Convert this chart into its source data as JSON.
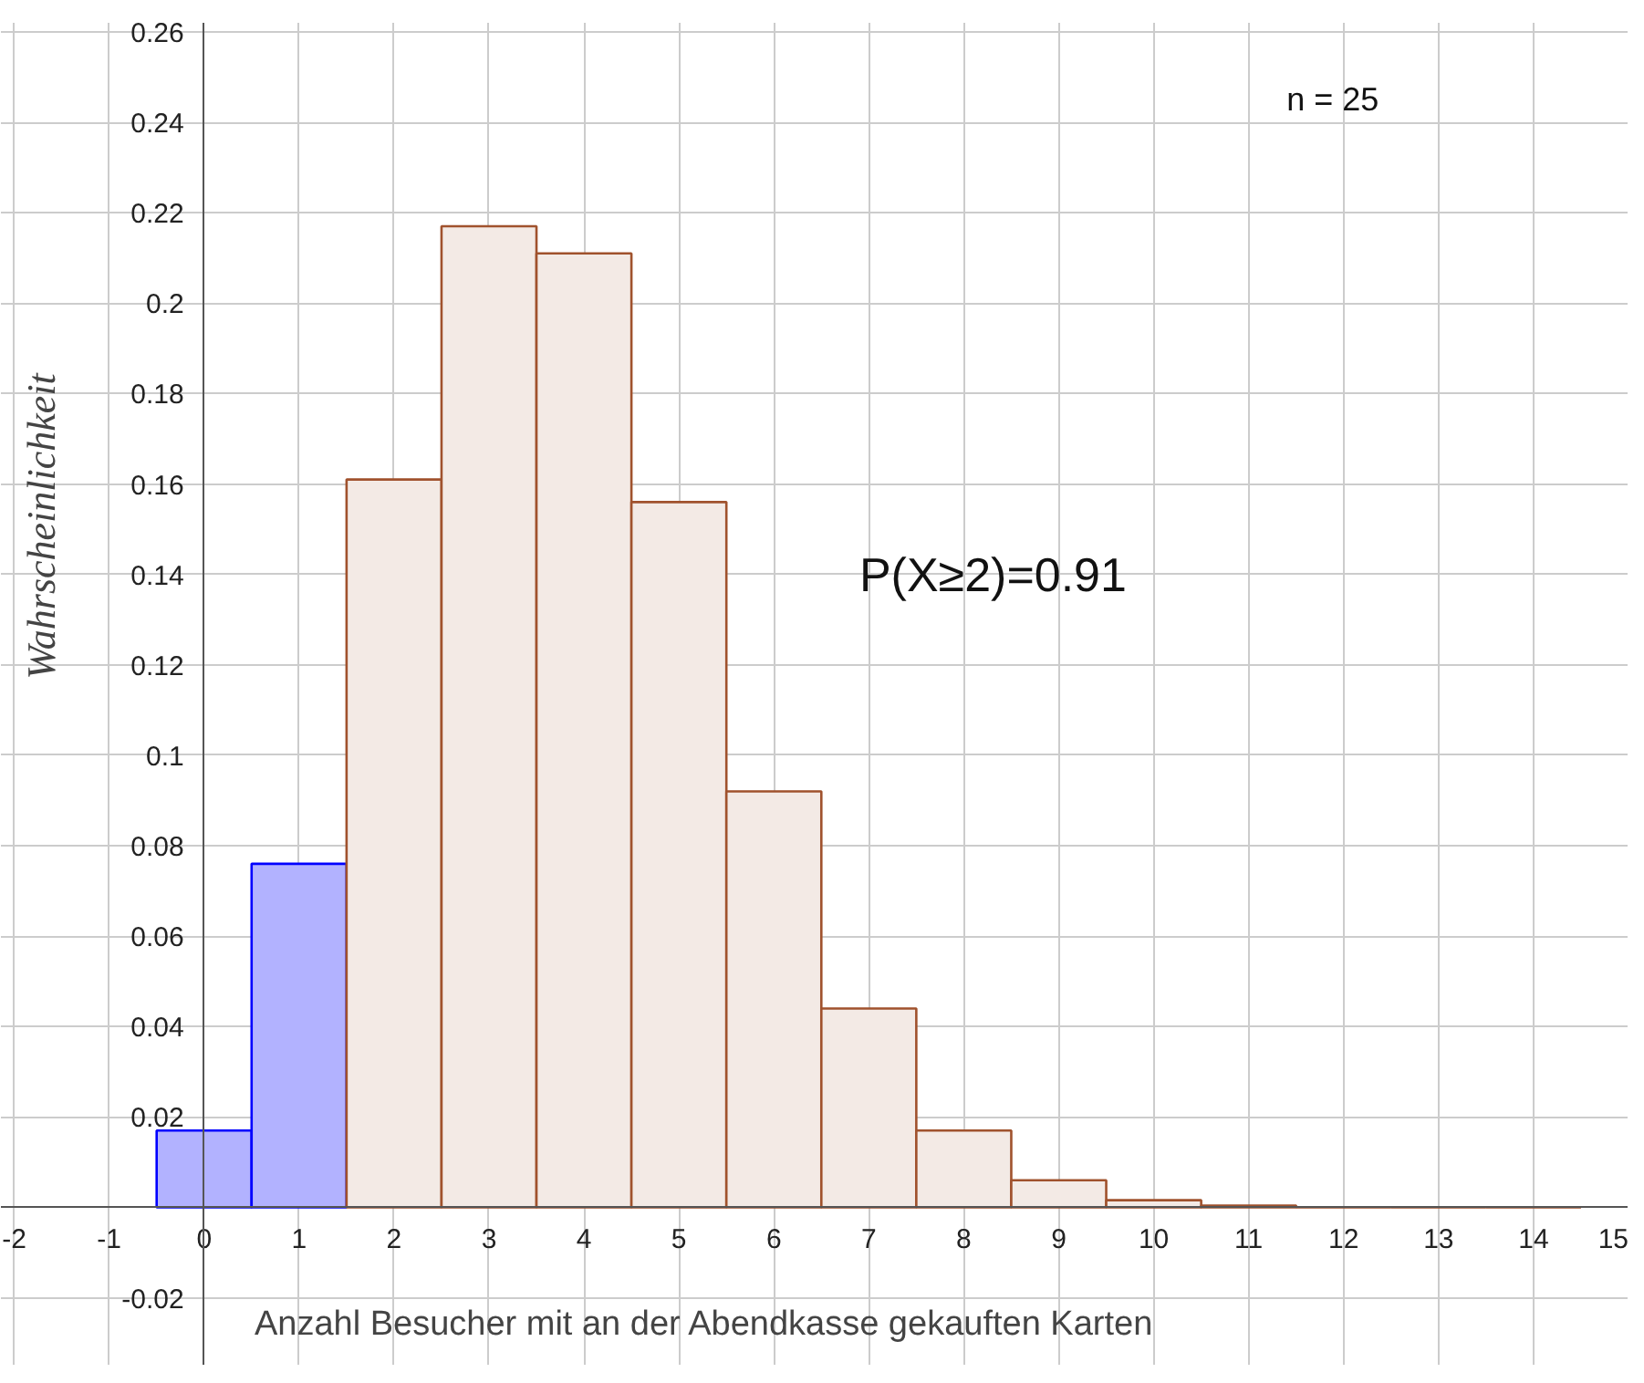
{
  "chart_data": {
    "type": "bar",
    "xlabel": "Anzahl Besucher mit an der Abendkasse gekauften Karten",
    "ylabel": "Wahrscheinlichkeit",
    "x": [
      0,
      1,
      2,
      3,
      4,
      5,
      6,
      7,
      8,
      9,
      10,
      11,
      12,
      13,
      14
    ],
    "values": [
      0.017,
      0.076,
      0.161,
      0.217,
      0.211,
      0.156,
      0.092,
      0.044,
      0.017,
      0.006,
      0.0016,
      0.0004,
      0,
      0,
      0
    ],
    "colors": [
      "#0000ff",
      "#0000ff",
      "#a0522d",
      "#a0522d",
      "#a0522d",
      "#a0522d",
      "#a0522d",
      "#a0522d",
      "#a0522d",
      "#a0522d",
      "#a0522d",
      "#a0522d",
      "#a0522d",
      "#a0522d",
      "#a0522d"
    ],
    "xlim": [
      -2.14,
      15.0
    ],
    "ylim": [
      -0.035,
      0.262
    ],
    "xticks": [
      {
        "value": -2,
        "label": "-2"
      },
      -1,
      0,
      1,
      2,
      3,
      4,
      5,
      6,
      7,
      8,
      9,
      10,
      11,
      12,
      13,
      14,
      15
    ],
    "yticks": [
      -0.02,
      {
        "value": 0,
        "label": null
      },
      0.02,
      0.04,
      0.06,
      0.08,
      0.1,
      0.12,
      0.14,
      0.16,
      0.18,
      0.2,
      0.22,
      0.24,
      0.26
    ],
    "grid": true,
    "annotations": [
      "P(X≥2)=0.91",
      "n = 25"
    ]
  }
}
